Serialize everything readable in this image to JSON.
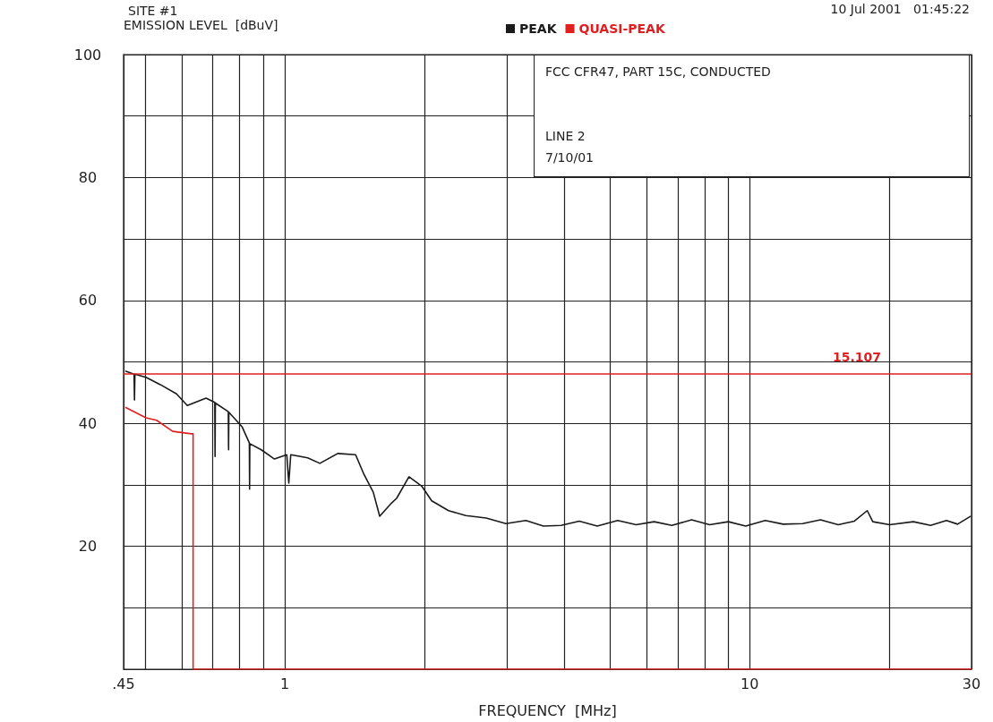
{
  "chart_data": {
    "type": "line",
    "title": "SITE #1",
    "xlabel": "FREQUENCY  [MHz]",
    "ylabel": "EMISSION LEVEL  [dBuV]",
    "annotations": [
      "10 Jul 2001   01:45:22",
      "FCC CFR47, PART 15C, CONDUCTED",
      "LINE 2",
      "7/10/01",
      {
        "text": "15.107",
        "x": 17,
        "y": 48
      }
    ],
    "log": "x",
    "grid": true,
    "legend": "top",
    "line_style": "solid",
    "xlim": [
      0.45,
      30
    ],
    "xticks": [
      {
        "value": 0.45,
        "label": ".45"
      },
      {
        "value": 0.5,
        "label": null
      },
      {
        "value": 0.6,
        "label": null
      },
      {
        "value": 0.7,
        "label": null
      },
      {
        "value": 0.8,
        "label": null
      },
      {
        "value": 0.9,
        "label": null
      },
      1,
      {
        "value": 2,
        "label": null
      },
      {
        "value": 3,
        "label": null
      },
      {
        "value": 4,
        "label": null
      },
      {
        "value": 5,
        "label": null
      },
      {
        "value": 6,
        "label": null
      },
      {
        "value": 7,
        "label": null
      },
      {
        "value": 8,
        "label": null
      },
      {
        "value": 9,
        "label": null
      },
      10,
      {
        "value": 20,
        "label": null
      },
      30
    ],
    "ylim": [
      0,
      100
    ],
    "yticks": [
      {
        "value": 0,
        "label": null
      },
      {
        "value": 10,
        "label": null
      },
      20,
      {
        "value": 30,
        "label": null
      },
      40,
      {
        "value": 50,
        "label": null
      },
      60,
      {
        "value": 70,
        "label": null
      },
      80,
      {
        "value": 90,
        "label": null
      },
      100
    ],
    "ref_lines": [
      {
        "axis": "y",
        "value": 48,
        "color": "#e02020"
      }
    ],
    "series": [
      {
        "name": "PEAK",
        "color": "#1a1a1a",
        "x": [
          0.454,
          0.474,
          0.475,
          0.476,
          0.503,
          0.54,
          0.585,
          0.617,
          0.677,
          0.707,
          0.708,
          0.709,
          0.756,
          0.757,
          0.758,
          0.81,
          0.839,
          0.84,
          0.841,
          0.89,
          0.95,
          1.01,
          1.02,
          1.03,
          1.12,
          1.19,
          1.3,
          1.42,
          1.48,
          1.55,
          1.6,
          1.69,
          1.74,
          1.85,
          1.97,
          2.07,
          2.25,
          2.45,
          2.71,
          2.99,
          3.3,
          3.6,
          3.93,
          4.3,
          4.7,
          5.2,
          5.7,
          6.23,
          6.8,
          7.5,
          8.2,
          9.0,
          9.8,
          10.8,
          11.8,
          13.0,
          14.2,
          15.5,
          16.8,
          17.9,
          18.4,
          20.0,
          22.5,
          24.5,
          26.5,
          28.0,
          29.9
        ],
        "values": [
          48.5,
          48.0,
          43.8,
          48.0,
          47.5,
          46.3,
          44.8,
          42.9,
          44.1,
          43.4,
          34.6,
          43.3,
          41.9,
          35.7,
          41.8,
          39.4,
          36.8,
          29.3,
          36.7,
          35.7,
          34.2,
          34.9,
          30.3,
          34.9,
          34.4,
          33.5,
          35.1,
          34.9,
          31.7,
          28.8,
          24.9,
          26.9,
          27.8,
          31.3,
          29.8,
          27.4,
          25.8,
          25.0,
          24.6,
          23.7,
          24.2,
          23.3,
          23.4,
          24.1,
          23.3,
          24.2,
          23.5,
          24.0,
          23.4,
          24.3,
          23.5,
          24.0,
          23.3,
          24.2,
          23.6,
          23.7,
          24.3,
          23.5,
          24.1,
          25.8,
          24.0,
          23.5,
          24.0,
          23.4,
          24.2,
          23.6,
          24.9
        ]
      },
      {
        "name": "QUASI-PEAK",
        "color": "#e02020",
        "x": [
          0.454,
          0.503,
          0.53,
          0.574,
          0.63,
          0.635,
          0.635,
          30
        ],
        "values": [
          42.6,
          40.9,
          40.5,
          38.7,
          38.3,
          38.3,
          0,
          0
        ]
      }
    ]
  }
}
